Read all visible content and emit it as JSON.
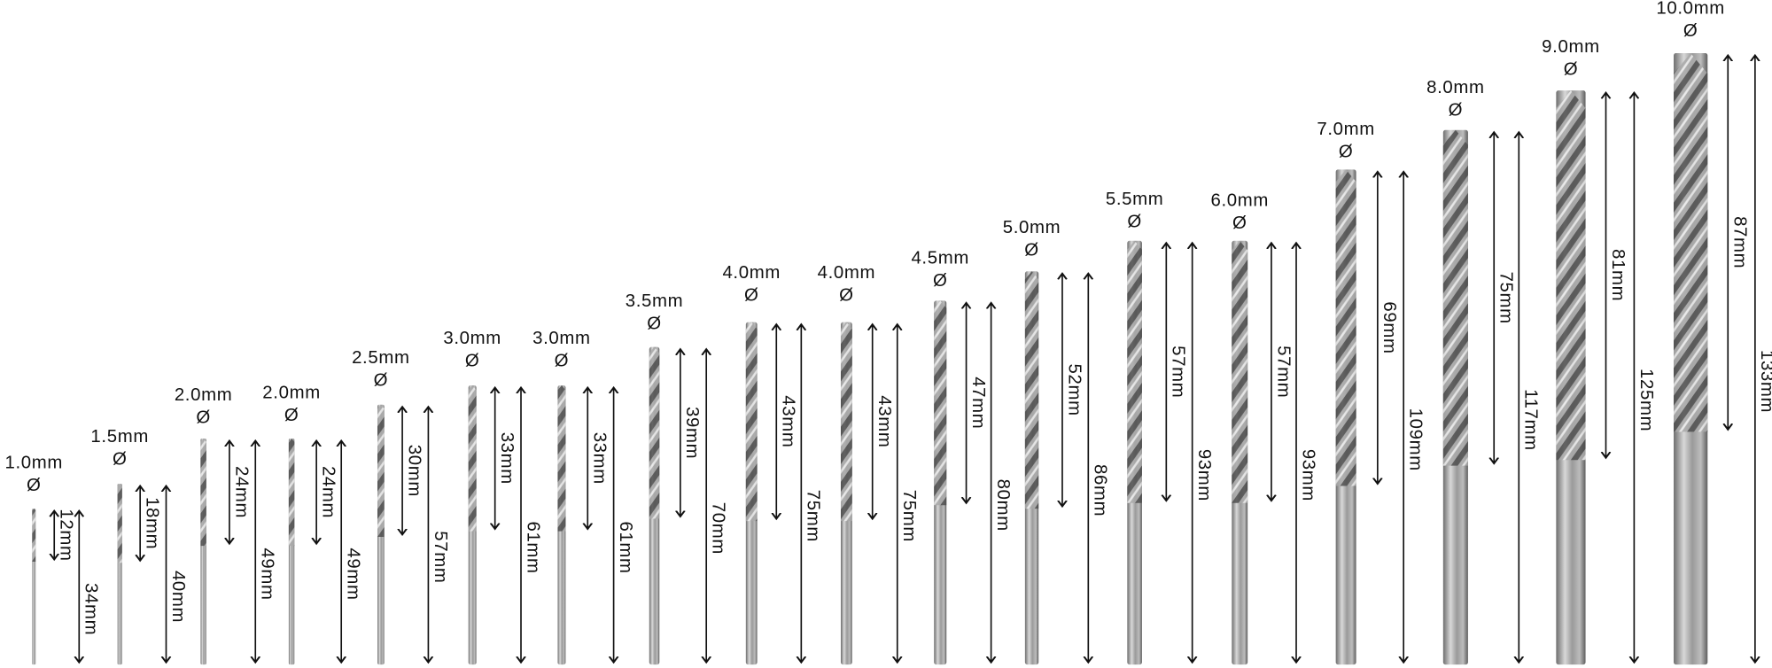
{
  "bits": [
    {
      "diameter": "1.0mm",
      "symbol": "Ø",
      "flute_length": "12mm",
      "total_length": "34mm"
    },
    {
      "diameter": "1.5mm",
      "symbol": "Ø",
      "flute_length": "18mm",
      "total_length": "40mm"
    },
    {
      "diameter": "2.0mm",
      "symbol": "Ø",
      "flute_length": "24mm",
      "total_length": "49mm"
    },
    {
      "diameter": "2.0mm",
      "symbol": "Ø",
      "flute_length": "24mm",
      "total_length": "49mm"
    },
    {
      "diameter": "2.5mm",
      "symbol": "Ø",
      "flute_length": "30mm",
      "total_length": "57mm"
    },
    {
      "diameter": "3.0mm",
      "symbol": "Ø",
      "flute_length": "33mm",
      "total_length": "61mm"
    },
    {
      "diameter": "3.0mm",
      "symbol": "Ø",
      "flute_length": "33mm",
      "total_length": "61mm"
    },
    {
      "diameter": "3.5mm",
      "symbol": "Ø",
      "flute_length": "39mm",
      "total_length": "70mm"
    },
    {
      "diameter": "4.0mm",
      "symbol": "Ø",
      "flute_length": "43mm",
      "total_length": "75mm"
    },
    {
      "diameter": "4.0mm",
      "symbol": "Ø",
      "flute_length": "43mm",
      "total_length": "75mm"
    },
    {
      "diameter": "4.5mm",
      "symbol": "Ø",
      "flute_length": "47mm",
      "total_length": "80mm"
    },
    {
      "diameter": "5.0mm",
      "symbol": "Ø",
      "flute_length": "52mm",
      "total_length": "86mm"
    },
    {
      "diameter": "5.5mm",
      "symbol": "Ø",
      "flute_length": "57mm",
      "total_length": "93mm"
    },
    {
      "diameter": "6.0mm",
      "symbol": "Ø",
      "flute_length": "57mm",
      "total_length": "93mm"
    },
    {
      "diameter": "7.0mm",
      "symbol": "Ø",
      "flute_length": "69mm",
      "total_length": "109mm"
    },
    {
      "diameter": "8.0mm",
      "symbol": "Ø",
      "flute_length": "75mm",
      "total_length": "117mm"
    },
    {
      "diameter": "9.0mm",
      "symbol": "Ø",
      "flute_length": "81mm",
      "total_length": "125mm"
    },
    {
      "diameter": "10.0mm",
      "symbol": "Ø",
      "flute_length": "87mm",
      "total_length": "133mm"
    }
  ]
}
